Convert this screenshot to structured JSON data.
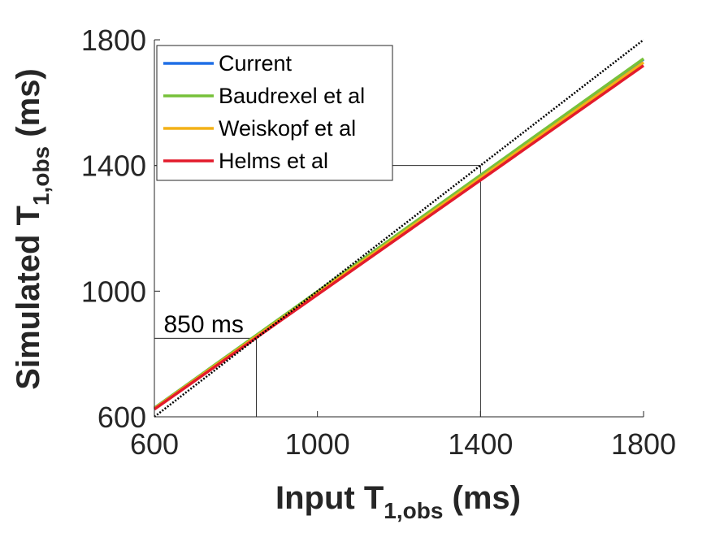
{
  "chart_data": {
    "type": "line",
    "xlabel": {
      "main": "Input T",
      "sub": "1,obs",
      "unit": "(ms)"
    },
    "ylabel": {
      "main": "Simulated T",
      "sub": "1,obs",
      "unit": "(ms)"
    },
    "xlim": [
      600,
      1800
    ],
    "ylim": [
      600,
      1800
    ],
    "xticks": [
      "600",
      "1000",
      "1400",
      "1800"
    ],
    "yticks": [
      "600",
      "1000",
      "1400",
      "1800"
    ],
    "grid": false,
    "legend_position": "top-left",
    "series": [
      {
        "name": "Current",
        "color": "#1f6fe6",
        "x": [
          600,
          1800
        ],
        "y": [
          628,
          1738
        ]
      },
      {
        "name": "Baudrexel et al",
        "color": "#77c13a",
        "x": [
          600,
          1800
        ],
        "y": [
          628,
          1740
        ]
      },
      {
        "name": "Weiskopf et al",
        "color": "#f3b116",
        "x": [
          600,
          1800
        ],
        "y": [
          626,
          1728
        ]
      },
      {
        "name": "Helms et al",
        "color": "#e31b2c",
        "x": [
          600,
          1800
        ],
        "y": [
          624,
          1718
        ]
      }
    ],
    "identity_line": {
      "x": [
        600,
        1800
      ],
      "y": [
        600,
        1800
      ],
      "style": "dotted",
      "color": "#000000"
    },
    "reference_lines": [
      {
        "x": 850,
        "y": 850
      },
      {
        "x": 1400,
        "y": 1400
      }
    ],
    "annotations": [
      {
        "text": "850 ms",
        "x": 603,
        "y": 900
      }
    ]
  }
}
